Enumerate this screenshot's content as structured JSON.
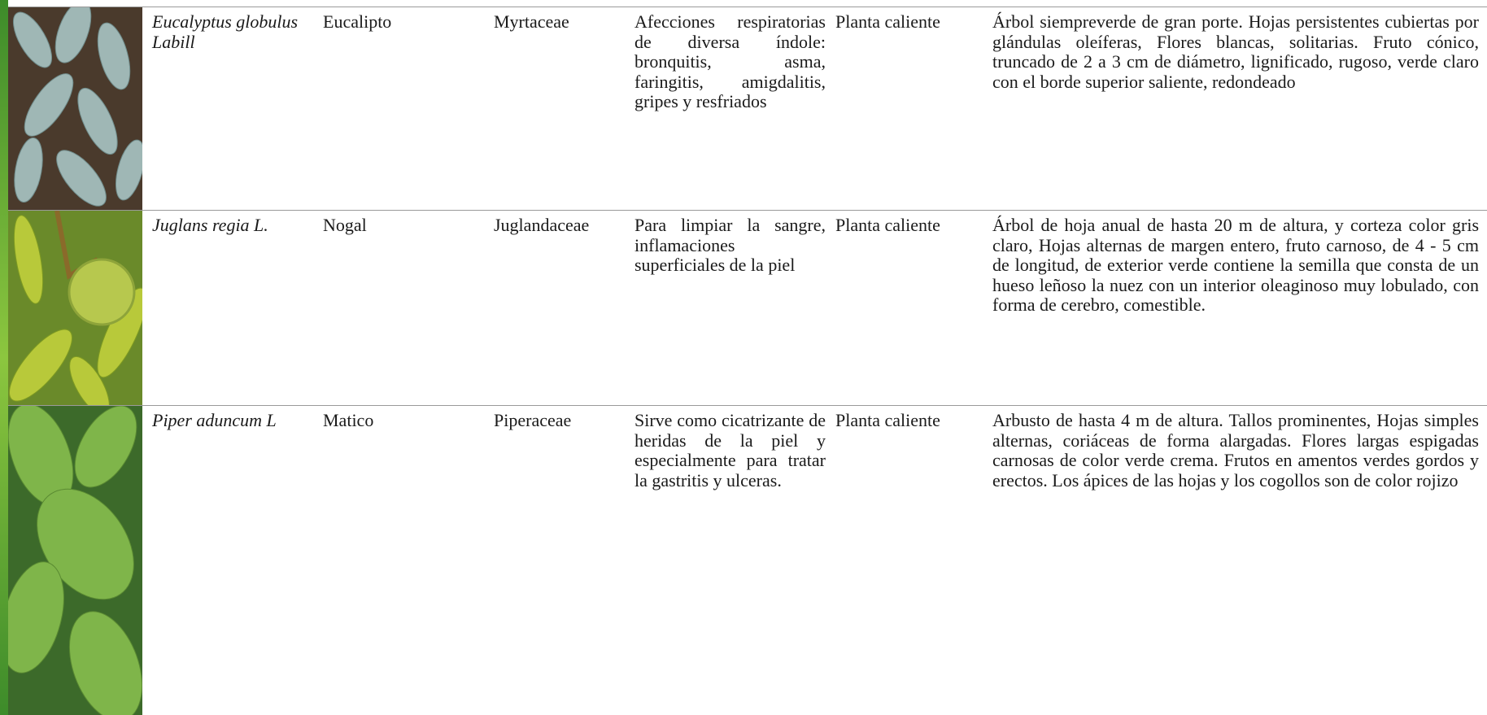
{
  "table": {
    "rows": [
      {
        "scientific_name": "Eucalyptus globulus Labill",
        "common_name": "Eucalipto",
        "family": "Myrtaceae",
        "use": "Afecciones respiratorias de diversa índole: bronquitis, asma, faringitis, amigdalitis, gripes y resfriados",
        "type": "Planta caliente",
        "description": "Árbol siempreverde de gran porte. Hojas persistentes cubiertas por glándulas oleíferas, Flores blancas, solitarias. Fruto cónico, truncado de 2 a 3 cm de diámetro, lignificado, rugoso, verde claro con el borde superior saliente, redondeado"
      },
      {
        "scientific_name": "Juglans regia L.",
        "common_name": "Nogal",
        "family": "Juglandaceae",
        "use": "Para limpiar la sangre, inflamaciones superficiales de la piel",
        "type": "Planta caliente",
        "description": "Árbol de hoja anual de hasta 20 m de altura, y corteza color gris claro, Hojas alternas de margen entero, fruto carnoso, de 4 - 5 cm de longitud, de exterior verde contiene la semilla que consta de un hueso leñoso la nuez con un interior oleaginoso muy lobulado, con forma de cerebro, comestible."
      },
      {
        "scientific_name": "Piper aduncum L",
        "common_name": "Matico",
        "family": "Piperaceae",
        "use": "Sirve como cicatrizante de heridas de la piel y especialmente para tratar la gastritis y ulceras.",
        "type": "Planta caliente",
        "description": "Arbusto de hasta 4 m de altura. Tallos prominentes, Hojas simples alternas, coriáceas de forma alargadas. Flores largas espigadas carnosas de color verde crema. Frutos en amentos verdes gordos y erectos. Los ápices de las hojas y los cogollos son de color rojizo"
      }
    ]
  }
}
